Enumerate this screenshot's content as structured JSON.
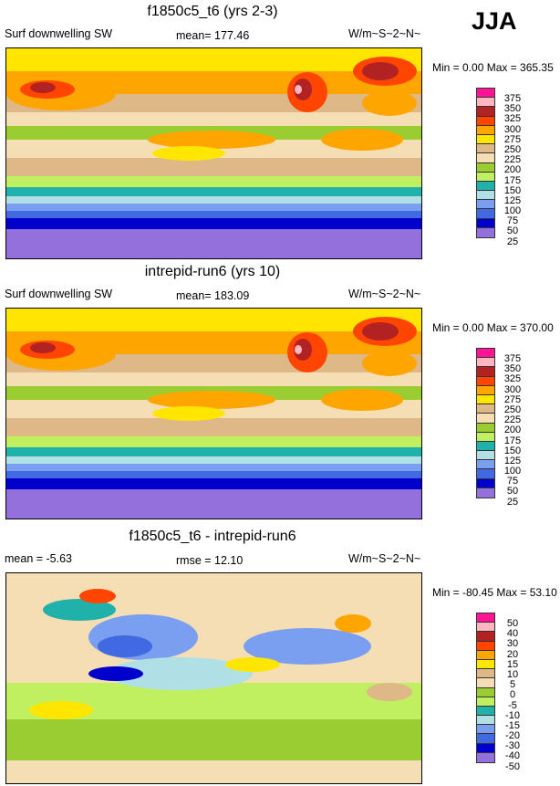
{
  "season": "JJA",
  "palette": [
    "#ff1493",
    "#ffb6c1",
    "#b22222",
    "#ff4500",
    "#ffa500",
    "#ffe600",
    "#deb887",
    "#f5deb3",
    "#9acd32",
    "#c0f060",
    "#20b2aa",
    "#b0e0e6",
    "#7b9ff0",
    "#4169e1",
    "#0000cd",
    "#9370db"
  ],
  "panels": [
    {
      "title": "f1850c5_t6 (yrs 2-3)",
      "left": "Surf downwelling SW",
      "center": "mean= 177.46",
      "right": "W/m~S~2~N~",
      "minmax": "Min =   0.00 Max = 365.35",
      "levels": [
        "375",
        "350",
        "325",
        "300",
        "275",
        "250",
        "225",
        "200",
        "175",
        "150",
        "125",
        "100",
        "75",
        "50",
        "25"
      ]
    },
    {
      "title": "intrepid-run6 (yrs 10)",
      "left": "Surf downwelling SW",
      "center": "mean= 183.09",
      "right": "W/m~S~2~N~",
      "minmax": "Min =   0.00 Max = 370.00",
      "levels": [
        "375",
        "350",
        "325",
        "300",
        "275",
        "250",
        "225",
        "200",
        "175",
        "150",
        "125",
        "100",
        "75",
        "50",
        "25"
      ]
    },
    {
      "title": "f1850c5_t6 - intrepid-run6",
      "left": "mean =  -5.63",
      "center": "rmse =  12.10",
      "right": "W/m~S~2~N~",
      "minmax": "Min = -80.45 Max =  53.10",
      "levels": [
        "50",
        "40",
        "30",
        "20",
        "15",
        "10",
        "5",
        "0",
        "-5",
        "-10",
        "-15",
        "-20",
        "-30",
        "-40",
        "-50"
      ]
    }
  ]
}
